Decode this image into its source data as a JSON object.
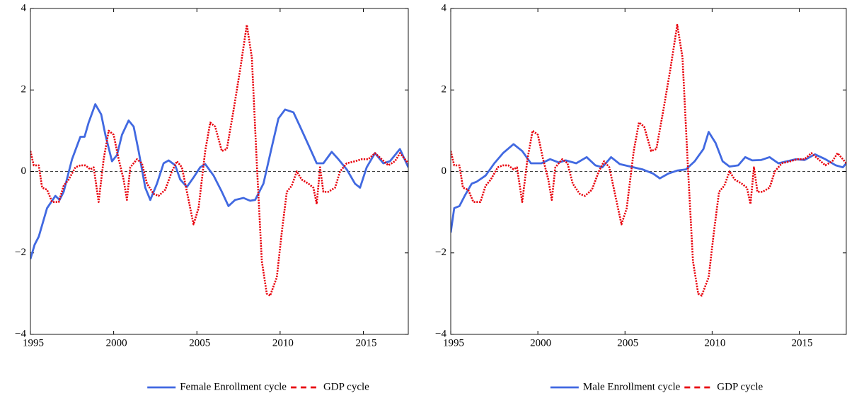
{
  "chart_data": [
    {
      "type": "line",
      "xlim": [
        1995,
        2017.7
      ],
      "ylim": [
        -4,
        4
      ],
      "xticks": [
        1995,
        2000,
        2005,
        2010,
        2015
      ],
      "yticks": [
        {
          "value": -4,
          "label": "−4"
        },
        {
          "value": -2,
          "label": "−2"
        },
        0,
        2,
        4
      ],
      "series": [
        {
          "name": "Female Enrollment cycle",
          "color": "#4169e1",
          "dash": "solid",
          "x": [
            1995,
            1995.25,
            1995.5,
            1996,
            1996.5,
            1996.75,
            1997,
            1997.5,
            1998,
            1998.25,
            1998.5,
            1998.9,
            1999.25,
            1999.5,
            1999.9,
            2000.2,
            2000.5,
            2000.9,
            2001.2,
            2001.5,
            2001.9,
            2002.2,
            2002.6,
            2003,
            2003.3,
            2003.7,
            2004,
            2004.4,
            2004.8,
            2005.2,
            2005.5,
            2006,
            2006.5,
            2006.9,
            2007.3,
            2007.8,
            2008.2,
            2008.5,
            2009,
            2009.5,
            2009.9,
            2010.3,
            2010.8,
            2011.2,
            2011.7,
            2012.2,
            2012.6,
            2013.1,
            2013.5,
            2014,
            2014.5,
            2014.8,
            2015.2,
            2015.7,
            2016.2,
            2016.6,
            2017.2,
            2017.7
          ],
          "values": [
            -2.15,
            -1.8,
            -1.6,
            -0.9,
            -0.6,
            -0.7,
            -0.5,
            0.3,
            0.85,
            0.85,
            1.2,
            1.65,
            1.4,
            0.9,
            0.25,
            0.4,
            0.9,
            1.25,
            1.1,
            0.5,
            -0.4,
            -0.7,
            -0.3,
            0.2,
            0.27,
            0.15,
            -0.2,
            -0.38,
            -0.15,
            0.1,
            0.18,
            -0.1,
            -0.5,
            -0.85,
            -0.7,
            -0.65,
            -0.72,
            -0.7,
            -0.3,
            0.6,
            1.3,
            1.52,
            1.45,
            1.1,
            0.65,
            0.2,
            0.2,
            0.48,
            0.3,
            0.05,
            -0.3,
            -0.4,
            0.1,
            0.45,
            0.2,
            0.25,
            0.55,
            0.1
          ]
        },
        {
          "name": "GDP cycle",
          "color": "#e8000b",
          "dash": "dotted",
          "x": [
            1995,
            1995.2,
            1995.5,
            1995.7,
            1996,
            1996.3,
            1996.7,
            1997,
            1997.3,
            1997.7,
            1998,
            1998.3,
            1998.6,
            1998.8,
            1999.1,
            1999.4,
            1999.7,
            2000,
            2000.3,
            2000.6,
            2000.8,
            2001,
            2001.4,
            2001.7,
            2002,
            2002.4,
            2002.7,
            2003.1,
            2003.5,
            2003.8,
            2004.1,
            2004.5,
            2004.8,
            2005.1,
            2005.5,
            2005.8,
            2006.1,
            2006.5,
            2006.8,
            2007.2,
            2007.6,
            2008,
            2008.3,
            2008.6,
            2008.9,
            2009.2,
            2009.4,
            2009.8,
            2010.1,
            2010.4,
            2010.7,
            2011,
            2011.3,
            2011.7,
            2012,
            2012.2,
            2012.4,
            2012.6,
            2012.9,
            2013.3,
            2013.6,
            2014,
            2014.5,
            2014.9,
            2015.3,
            2015.7,
            2016.1,
            2016.5,
            2016.9,
            2017.2,
            2017.5,
            2017.7
          ],
          "values": [
            0.5,
            0.15,
            0.15,
            -0.4,
            -0.45,
            -0.75,
            -0.75,
            -0.35,
            -0.2,
            0.1,
            0.15,
            0.15,
            0.05,
            0.1,
            -0.75,
            0.3,
            1.0,
            0.9,
            0.3,
            -0.2,
            -0.7,
            0.1,
            0.3,
            0.2,
            -0.3,
            -0.55,
            -0.6,
            -0.45,
            0.0,
            0.25,
            0.1,
            -0.7,
            -1.3,
            -0.9,
            0.5,
            1.2,
            1.1,
            0.5,
            0.55,
            1.5,
            2.5,
            3.6,
            2.8,
            0.2,
            -2.2,
            -3.0,
            -3.05,
            -2.6,
            -1.5,
            -0.5,
            -0.35,
            0.0,
            -0.2,
            -0.3,
            -0.4,
            -0.8,
            0.1,
            -0.5,
            -0.5,
            -0.4,
            0.0,
            0.2,
            0.25,
            0.3,
            0.3,
            0.45,
            0.3,
            0.15,
            0.25,
            0.45,
            0.3,
            0.2
          ]
        }
      ]
    },
    {
      "type": "line",
      "xlim": [
        1995,
        2017.7
      ],
      "ylim": [
        -4,
        4
      ],
      "xticks": [
        1995,
        2000,
        2005,
        2010,
        2015
      ],
      "yticks": [
        {
          "value": -4,
          "label": "−4"
        },
        {
          "value": -2,
          "label": "−2"
        },
        0,
        2,
        4
      ],
      "series": [
        {
          "name": "Male Enrollment cycle",
          "color": "#4169e1",
          "dash": "solid",
          "x": [
            1995,
            1995.2,
            1995.5,
            1995.8,
            1996.2,
            1996.5,
            1997,
            1997.5,
            1998,
            1998.6,
            1999.1,
            1999.6,
            2000.2,
            2000.7,
            2001.2,
            2001.6,
            2002.2,
            2002.8,
            2003.3,
            2003.7,
            2004.2,
            2004.7,
            2005.5,
            2006,
            2006.6,
            2007,
            2007.5,
            2008,
            2008.5,
            2009,
            2009.5,
            2009.8,
            2010.2,
            2010.6,
            2011,
            2011.5,
            2011.9,
            2012.3,
            2012.8,
            2013.3,
            2013.8,
            2014.3,
            2014.8,
            2015.3,
            2015.9,
            2016.5,
            2017.1,
            2017.5,
            2017.7
          ],
          "values": [
            -1.5,
            -0.9,
            -0.85,
            -0.6,
            -0.3,
            -0.25,
            -0.1,
            0.2,
            0.45,
            0.67,
            0.5,
            0.2,
            0.2,
            0.3,
            0.22,
            0.27,
            0.2,
            0.35,
            0.15,
            0.1,
            0.35,
            0.18,
            0.1,
            0.05,
            -0.05,
            -0.17,
            -0.05,
            0.02,
            0.05,
            0.25,
            0.55,
            0.97,
            0.7,
            0.25,
            0.12,
            0.15,
            0.35,
            0.27,
            0.28,
            0.35,
            0.2,
            0.25,
            0.3,
            0.28,
            0.42,
            0.3,
            0.15,
            0.1,
            0.2
          ]
        },
        {
          "name": "GDP cycle",
          "color": "#e8000b",
          "dash": "dotted",
          "x": [
            1995,
            1995.2,
            1995.5,
            1995.7,
            1996,
            1996.3,
            1996.7,
            1997,
            1997.3,
            1997.7,
            1998,
            1998.3,
            1998.6,
            1998.8,
            1999.1,
            1999.4,
            1999.7,
            2000,
            2000.3,
            2000.6,
            2000.8,
            2001,
            2001.4,
            2001.7,
            2002,
            2002.4,
            2002.7,
            2003.1,
            2003.5,
            2003.8,
            2004.1,
            2004.5,
            2004.8,
            2005.1,
            2005.5,
            2005.8,
            2006.1,
            2006.5,
            2006.8,
            2007.2,
            2007.6,
            2008,
            2008.3,
            2008.6,
            2008.9,
            2009.2,
            2009.4,
            2009.8,
            2010.1,
            2010.4,
            2010.7,
            2011,
            2011.3,
            2011.7,
            2012,
            2012.2,
            2012.4,
            2012.6,
            2012.9,
            2013.3,
            2013.6,
            2014,
            2014.5,
            2014.9,
            2015.3,
            2015.7,
            2016.1,
            2016.5,
            2016.9,
            2017.2,
            2017.5,
            2017.7
          ],
          "values": [
            0.5,
            0.15,
            0.15,
            -0.4,
            -0.45,
            -0.75,
            -0.75,
            -0.35,
            -0.2,
            0.1,
            0.15,
            0.15,
            0.05,
            0.1,
            -0.75,
            0.3,
            1.0,
            0.9,
            0.3,
            -0.2,
            -0.7,
            0.1,
            0.3,
            0.2,
            -0.3,
            -0.55,
            -0.6,
            -0.45,
            0.0,
            0.25,
            0.1,
            -0.7,
            -1.3,
            -0.9,
            0.5,
            1.2,
            1.1,
            0.5,
            0.55,
            1.5,
            2.5,
            3.6,
            2.8,
            0.2,
            -2.2,
            -3.0,
            -3.05,
            -2.6,
            -1.5,
            -0.5,
            -0.35,
            0.0,
            -0.2,
            -0.3,
            -0.4,
            -0.8,
            0.1,
            -0.5,
            -0.5,
            -0.4,
            0.0,
            0.2,
            0.25,
            0.3,
            0.3,
            0.45,
            0.3,
            0.15,
            0.25,
            0.45,
            0.3,
            0.2
          ]
        }
      ]
    }
  ]
}
